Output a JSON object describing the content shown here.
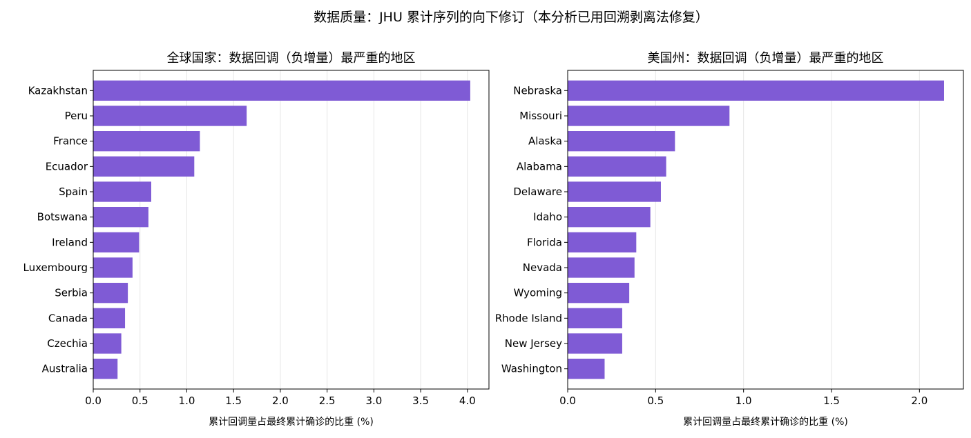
{
  "figure": {
    "suptitle": "数据质量：JHU 累计序列的向下修订（本分析已用回溯剥离法修复）"
  },
  "style": {
    "bar_color": "#7f5bd5",
    "grid_color": "#e6e6e6",
    "axis_color": "#000000"
  },
  "chart_data": [
    {
      "type": "bar",
      "orientation": "horizontal",
      "title": "全球国家：数据回调（负增量）最严重的地区",
      "xlabel": "累计回调量占最终累计确诊的比重 (%)",
      "ylabel": "",
      "categories": [
        "Kazakhstan",
        "Peru",
        "France",
        "Ecuador",
        "Spain",
        "Botswana",
        "Ireland",
        "Luxembourg",
        "Serbia",
        "Canada",
        "Czechia",
        "Australia"
      ],
      "values": [
        4.03,
        1.64,
        1.14,
        1.08,
        0.62,
        0.59,
        0.49,
        0.42,
        0.37,
        0.34,
        0.3,
        0.26
      ],
      "xlim": [
        0,
        4.23
      ],
      "xticks": [
        0.0,
        0.5,
        1.0,
        1.5,
        2.0,
        2.5,
        3.0,
        3.5,
        4.0
      ],
      "xtick_labels": [
        "0.0",
        "0.5",
        "1.0",
        "1.5",
        "2.0",
        "2.5",
        "3.0",
        "3.5",
        "4.0"
      ],
      "grid": "x"
    },
    {
      "type": "bar",
      "orientation": "horizontal",
      "title": "美国州：数据回调（负增量）最严重的地区",
      "xlabel": "累计回调量占最终累计确诊的比重 (%)",
      "ylabel": "",
      "categories": [
        "Nebraska",
        "Missouri",
        "Alaska",
        "Alabama",
        "Delaware",
        "Idaho",
        "Florida",
        "Nevada",
        "Wyoming",
        "Rhode Island",
        "New Jersey",
        "Washington"
      ],
      "values": [
        2.14,
        0.92,
        0.61,
        0.56,
        0.53,
        0.47,
        0.39,
        0.38,
        0.35,
        0.31,
        0.31,
        0.21
      ],
      "xlim": [
        0,
        2.25
      ],
      "xticks": [
        0.0,
        0.5,
        1.0,
        1.5,
        2.0
      ],
      "xtick_labels": [
        "0.0",
        "0.5",
        "1.0",
        "1.5",
        "2.0"
      ],
      "grid": "x"
    }
  ]
}
